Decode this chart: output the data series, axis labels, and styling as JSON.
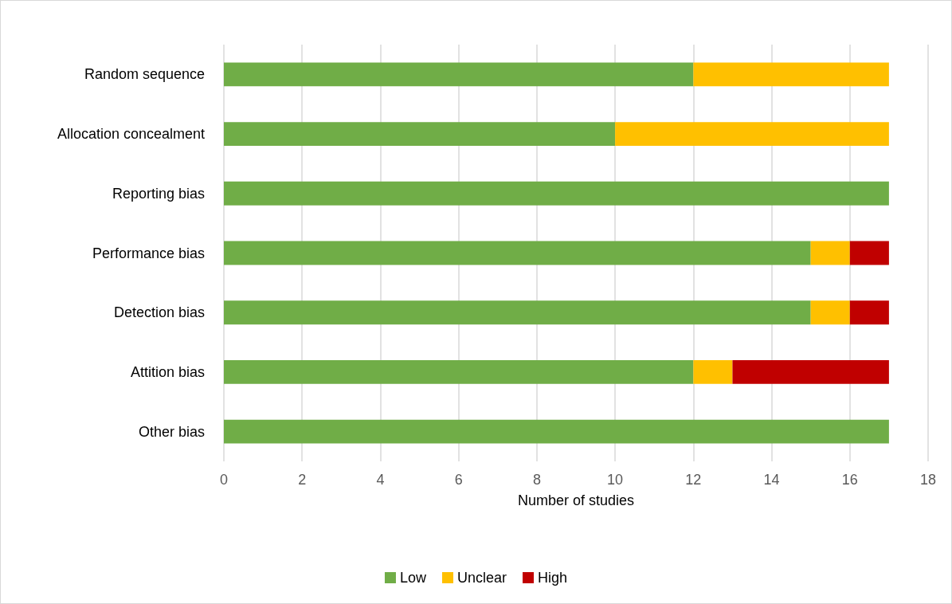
{
  "chart_data": {
    "type": "bar",
    "orientation": "horizontal",
    "stacked": true,
    "xlabel": "Number of studies",
    "categories": [
      "Random sequence",
      "Allocation concealment",
      "Reporting bias",
      "Performance bias",
      "Detection bias",
      "Attition bias",
      "Other bias"
    ],
    "series": [
      {
        "name": "Low",
        "color": "#70ad47",
        "values": [
          12,
          10,
          17,
          15,
          15,
          12,
          17
        ]
      },
      {
        "name": "Unclear",
        "color": "#ffc000",
        "values": [
          5,
          7,
          0,
          1,
          1,
          1,
          0
        ]
      },
      {
        "name": "High",
        "color": "#c00000",
        "values": [
          0,
          0,
          0,
          1,
          1,
          4,
          0
        ]
      }
    ],
    "xlim": [
      0,
      18
    ],
    "xticks": [
      0,
      2,
      4,
      6,
      8,
      10,
      12,
      14,
      16,
      18
    ],
    "grid": "x",
    "legend": "bottom"
  }
}
